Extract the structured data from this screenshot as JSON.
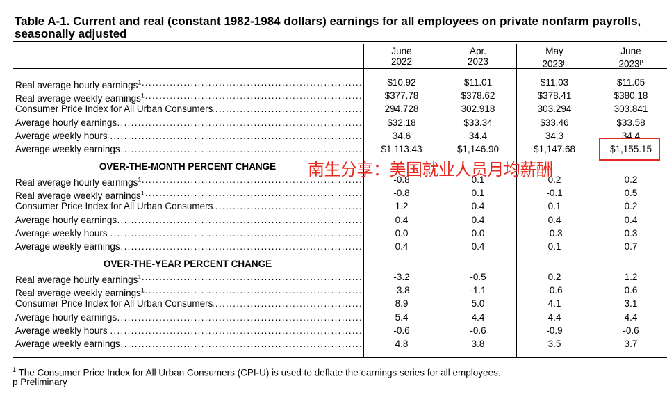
{
  "title": "Table A-1. Current and real (constant 1982-1984 dollars) earnings for all employees on private nonfarm payrolls, seasonally adjusted",
  "columns": [
    {
      "month": "June",
      "year": "2022",
      "mark": ""
    },
    {
      "month": "Apr.",
      "year": "2023",
      "mark": ""
    },
    {
      "month": "May",
      "year": "2023",
      "mark": "p"
    },
    {
      "month": "June",
      "year": "2023",
      "mark": "p"
    }
  ],
  "levels": [
    {
      "label": "Real average hourly earnings",
      "note": "1",
      "values": [
        "$10.92",
        "$11.01",
        "$11.03",
        "$11.05"
      ]
    },
    {
      "label": "Real average weekly earnings",
      "note": "1",
      "values": [
        "$377.78",
        "$378.62",
        "$378.41",
        "$380.18"
      ]
    },
    {
      "label": "Consumer Price Index for All Urban Consumers",
      "note": "",
      "values": [
        "294.728",
        "302.918",
        "303.294",
        "303.841"
      ]
    },
    {
      "label": "Average hourly earnings",
      "note": "",
      "values": [
        "$32.18",
        "$33.34",
        "$33.46",
        "$33.58"
      ]
    },
    {
      "label": "Average weekly hours",
      "note": "",
      "values": [
        "34.6",
        "34.4",
        "34.3",
        "34.4"
      ]
    },
    {
      "label": "Average weekly earnings",
      "note": "",
      "values": [
        "$1,113.43",
        "$1,146.90",
        "$1,147.68",
        "$1,155.15"
      ]
    }
  ],
  "month_heading": "OVER-THE-MONTH PERCENT CHANGE",
  "month_rows": [
    {
      "label": "Real average hourly earnings",
      "note": "1",
      "values": [
        "-0.8",
        "0.1",
        "0.2",
        "0.2"
      ]
    },
    {
      "label": "Real average weekly earnings",
      "note": "1",
      "values": [
        "-0.8",
        "0.1",
        "-0.1",
        "0.5"
      ]
    },
    {
      "label": "Consumer Price Index for All Urban Consumers",
      "note": "",
      "values": [
        "1.2",
        "0.4",
        "0.1",
        "0.2"
      ]
    },
    {
      "label": "Average hourly earnings",
      "note": "",
      "values": [
        "0.4",
        "0.4",
        "0.4",
        "0.4"
      ]
    },
    {
      "label": "Average weekly hours",
      "note": "",
      "values": [
        "0.0",
        "0.0",
        "-0.3",
        "0.3"
      ]
    },
    {
      "label": "Average weekly earnings",
      "note": "",
      "values": [
        "0.4",
        "0.4",
        "0.1",
        "0.7"
      ]
    }
  ],
  "year_heading": "OVER-THE-YEAR PERCENT CHANGE",
  "year_rows": [
    {
      "label": "Real average hourly earnings",
      "note": "1",
      "values": [
        "-3.2",
        "-0.5",
        "0.2",
        "1.2"
      ]
    },
    {
      "label": "Real average weekly earnings",
      "note": "1",
      "values": [
        "-3.8",
        "-1.1",
        "-0.6",
        "0.6"
      ]
    },
    {
      "label": "Consumer Price Index for All Urban Consumers",
      "note": "",
      "values": [
        "8.9",
        "5.0",
        "4.1",
        "3.1"
      ]
    },
    {
      "label": "Average hourly earnings",
      "note": "",
      "values": [
        "5.4",
        "4.4",
        "4.4",
        "4.4"
      ]
    },
    {
      "label": "Average weekly hours",
      "note": "",
      "values": [
        "-0.6",
        "-0.6",
        "-0.9",
        "-0.6"
      ]
    },
    {
      "label": "Average weekly earnings",
      "note": "",
      "values": [
        "4.8",
        "3.8",
        "3.5",
        "3.7"
      ]
    }
  ],
  "watermark": "南生分享：美国就业人员月均薪酬",
  "footnote_mark": "1",
  "footnote_text": " The Consumer Price Index for All Urban Consumers (CPI-U) is used to deflate the earnings series for all employees.",
  "prelim_note": "p Preliminary",
  "accent_color": "#e8291f"
}
